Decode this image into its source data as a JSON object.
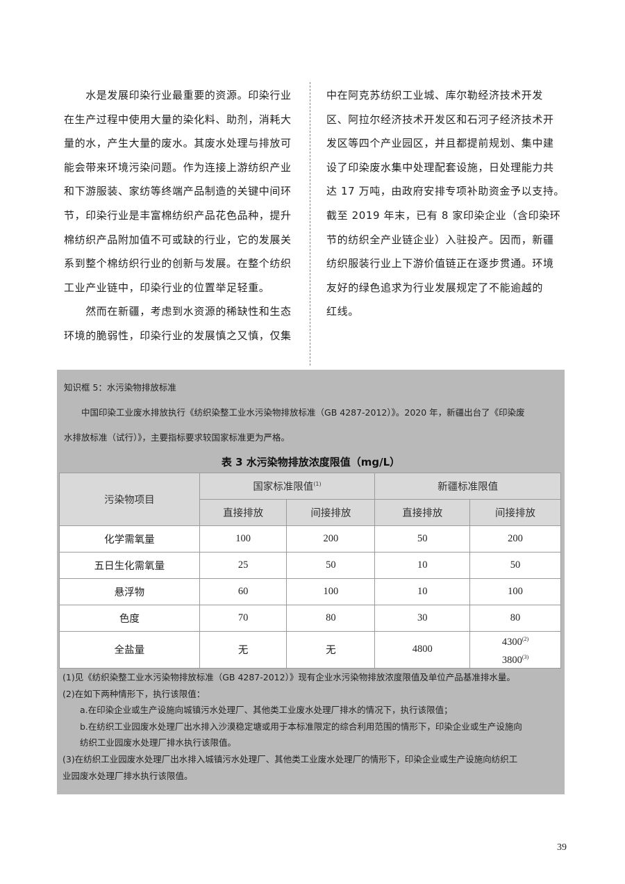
{
  "left_column_lines": [
    "　　水是发展印染行业最重要的资源。印染行业",
    "在生产过程中使用大量的染化料、助剂，消耗大",
    "量的水，产生大量的废水。其废水处理与排放可",
    "能会带来环境污染问题。作为连接上游纺织产业",
    "和下游服装、家纺等终端产品制造的关键中间环",
    "节，印染行业是丰富棉纺织产品花色品种，提升",
    "棉纺织产品附加值不可或缺的行业，它的发展关",
    "系到整个棉纺织行业的创新与发展。在整个纺织",
    "工业产业链中，印染行业的位置举足轻重。",
    "　　然而在新疆，考虑到水资源的稀缺性和生态",
    "环境的脆弱性，印染行业的发展慎之又慎，仅集"
  ],
  "right_column_lines": [
    "中在阿克苏纺织工业城、库尔勒经济技术开发",
    "区、阿拉尔经济技术开发区和石河子经济技术开",
    "发区等四个产业园区，并且都提前规划、集中建",
    "设了印染废水集中处理配套设施，日处理能力共",
    "达 17 万吨，由政府安排专项补助资金予以支持。",
    "截至 2019 年末，已有 8 家印染企业（含印染环",
    "节的纺织全产业链企业）入驻投产。因而，新疆",
    "纺织服装行业上下游价值链正在逐步贯通。环境",
    "友好的绿色追求为行业发展规定了不能逾越的",
    "红线。"
  ],
  "knowledge_box": {
    "title": "知识框 5：水污染物排放标准",
    "para_line1": "　　中国印染工业废水排放执行《纺织染整工业水污染物排放标准（GB 4287-2012）》。2020 年，新疆出台了《印染废",
    "para_line2": "水排放标准（试行）》，主要指标要求较国家标准更为严格。",
    "table": {
      "caption": "表 3  水污染物排放浓度限值（mg/L）",
      "header_item": "污染物项目",
      "group_national": "国家标准限值",
      "group_national_note": "(1)",
      "group_xinjiang": "新疆标准限值",
      "sub": [
        "直接排放",
        "间接排放",
        "直接排放",
        "间接排放"
      ],
      "rows": [
        {
          "item": "化学需氧量",
          "values": [
            "100",
            "200",
            "50",
            "200"
          ]
        },
        {
          "item": "五日生化需氧量",
          "values": [
            "25",
            "50",
            "10",
            "50"
          ]
        },
        {
          "item": "悬浮物",
          "values": [
            "60",
            "100",
            "10",
            "100"
          ]
        },
        {
          "item": "色度",
          "values": [
            "70",
            "80",
            "30",
            "80"
          ]
        },
        {
          "item": "全盐量",
          "values": [
            "无",
            "无",
            "4800"
          ],
          "last_a": "4300",
          "last_a_note": "(2)",
          "last_b": "3800",
          "last_b_note": "(3)"
        }
      ]
    },
    "notes": [
      "(1)见《纺织染整工业水污染物排放标准（GB 4287-2012）》现有企业水污染物排放浓度限值及单位产品基准排水量。",
      "(2)在如下两种情形下，执行该限值：",
      "a.在印染企业或生产设施向城镇污水处理厂、其他类工业废水处理厂排水的情况下，执行该限值；",
      "b.在纺织工业园废水处理厂出水排入沙漠稳定塘或用于本标准限定的综合利用范围的情形下，印染企业或生产设施向",
      "纺织工业园废水处理厂排水执行该限值。",
      "(3)在纺织工业园废水处理厂出水排入城镇污水处理厂、其他类工业废水处理厂的情形下，印染企业或生产设施向纺织工",
      "业园废水处理厂排水执行该限值。"
    ]
  },
  "page_number": "39"
}
